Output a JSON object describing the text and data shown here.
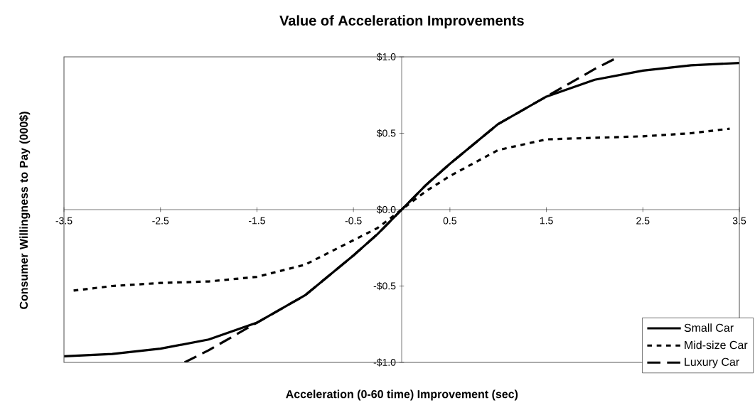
{
  "chart_data": {
    "type": "line",
    "title": "Value of Acceleration Improvements",
    "xlabel": "Acceleration (0-60 time) Improvement (sec)",
    "ylabel": "Consumer Willingness to Pay (000$)",
    "xlim": [
      -3.5,
      3.5
    ],
    "ylim": [
      -1.0,
      1.0
    ],
    "xticks": [
      -3.5,
      -2.5,
      -1.5,
      -0.5,
      0.5,
      1.5,
      2.5,
      3.5
    ],
    "yticks": [
      {
        "value": -1.0,
        "label": "-$1.0"
      },
      {
        "value": -0.5,
        "label": "-$0.5"
      },
      {
        "value": 0.0,
        "label": "$0.0"
      },
      {
        "value": 0.5,
        "label": "$0.5"
      },
      {
        "value": 1.0,
        "label": "$1.0"
      }
    ],
    "grid": false,
    "legend": "bottom right",
    "marker": "none",
    "series": [
      {
        "name": "Small Car",
        "color": "#000000",
        "line_style": "solid",
        "x": [
          -3.5,
          -3,
          -2.5,
          -2,
          -1.5,
          -1,
          -0.5,
          -0.25,
          0,
          0.25,
          0.5,
          1,
          1.5,
          2,
          2.5,
          3,
          3.5
        ],
        "values": [
          -0.96,
          -0.945,
          -0.91,
          -0.85,
          -0.74,
          -0.56,
          -0.3,
          -0.16,
          0,
          0.16,
          0.3,
          0.56,
          0.74,
          0.85,
          0.91,
          0.945,
          0.96
        ]
      },
      {
        "name": "Mid-size Car",
        "color": "#000000",
        "line_style": "dotted",
        "x": [
          -3.4,
          -3,
          -2.5,
          -2,
          -1.5,
          -1,
          -0.5,
          -0.25,
          0,
          0.25,
          0.5,
          1,
          1.5,
          2,
          2.5,
          3,
          3.4
        ],
        "values": [
          -0.53,
          -0.5,
          -0.48,
          -0.47,
          -0.44,
          -0.36,
          -0.2,
          -0.12,
          0,
          0.12,
          0.22,
          0.39,
          0.46,
          0.47,
          0.48,
          0.5,
          0.53
        ]
      },
      {
        "name": "Luxury Car",
        "color": "#000000",
        "line_style": "dashed",
        "x": [
          -2.25,
          -2,
          -1.5,
          -1,
          -0.5,
          -0.25,
          0,
          0.25,
          0.5,
          1,
          1.5,
          2,
          2.25
        ],
        "values": [
          -1.0,
          -0.92,
          -0.74,
          -0.56,
          -0.3,
          -0.16,
          0,
          0.16,
          0.3,
          0.56,
          0.74,
          0.92,
          1.0
        ]
      }
    ]
  }
}
